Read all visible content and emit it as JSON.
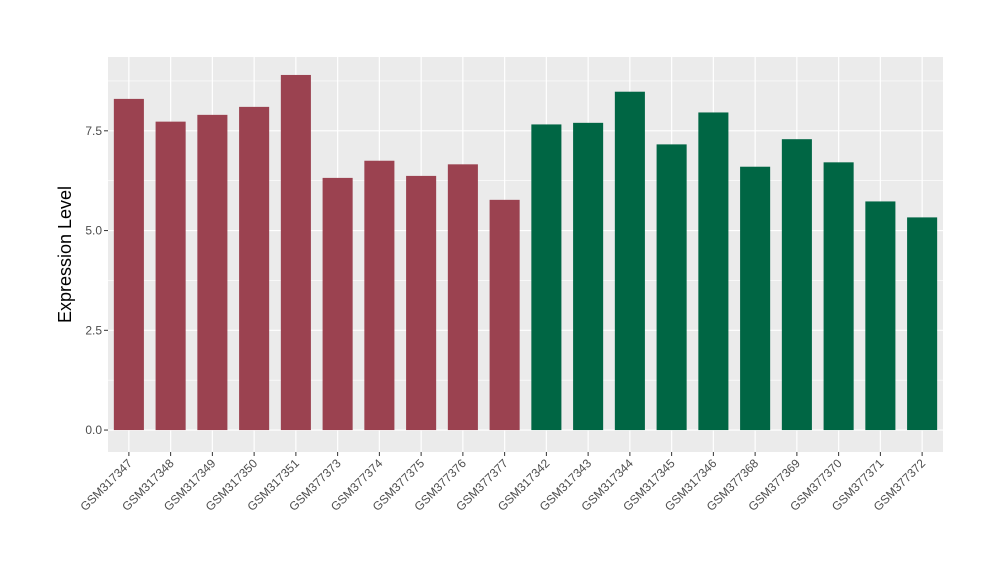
{
  "chart_data": {
    "type": "bar",
    "title": "",
    "xlabel": "",
    "ylabel": "Expression Level",
    "ylim": [
      -0.55,
      9.35
    ],
    "yticks": [
      0.0,
      2.5,
      5.0,
      7.5
    ],
    "ytick_labels": [
      "0.0",
      "2.5",
      "5.0",
      "7.5"
    ],
    "grid": true,
    "legend": "none",
    "categories": [
      "GSM317347",
      "GSM317348",
      "GSM317349",
      "GSM317350",
      "GSM317351",
      "GSM377373",
      "GSM377374",
      "GSM377375",
      "GSM377376",
      "GSM377377",
      "GSM317342",
      "GSM317343",
      "GSM317344",
      "GSM317345",
      "GSM317346",
      "GSM377368",
      "GSM377369",
      "GSM377370",
      "GSM377371",
      "GSM377372"
    ],
    "values": [
      8.3,
      7.73,
      7.9,
      8.1,
      8.9,
      6.32,
      6.75,
      6.37,
      6.66,
      5.77,
      7.66,
      7.7,
      8.48,
      7.16,
      7.96,
      6.6,
      7.29,
      6.71,
      5.73,
      5.33
    ],
    "group_of_bar": [
      0,
      0,
      0,
      0,
      0,
      0,
      0,
      0,
      0,
      0,
      1,
      1,
      1,
      1,
      1,
      1,
      1,
      1,
      1,
      1
    ],
    "group_colors": [
      "#9b4250",
      "#006644"
    ],
    "panel_color": "#ebebeb",
    "grid_color": "#ffffff"
  }
}
